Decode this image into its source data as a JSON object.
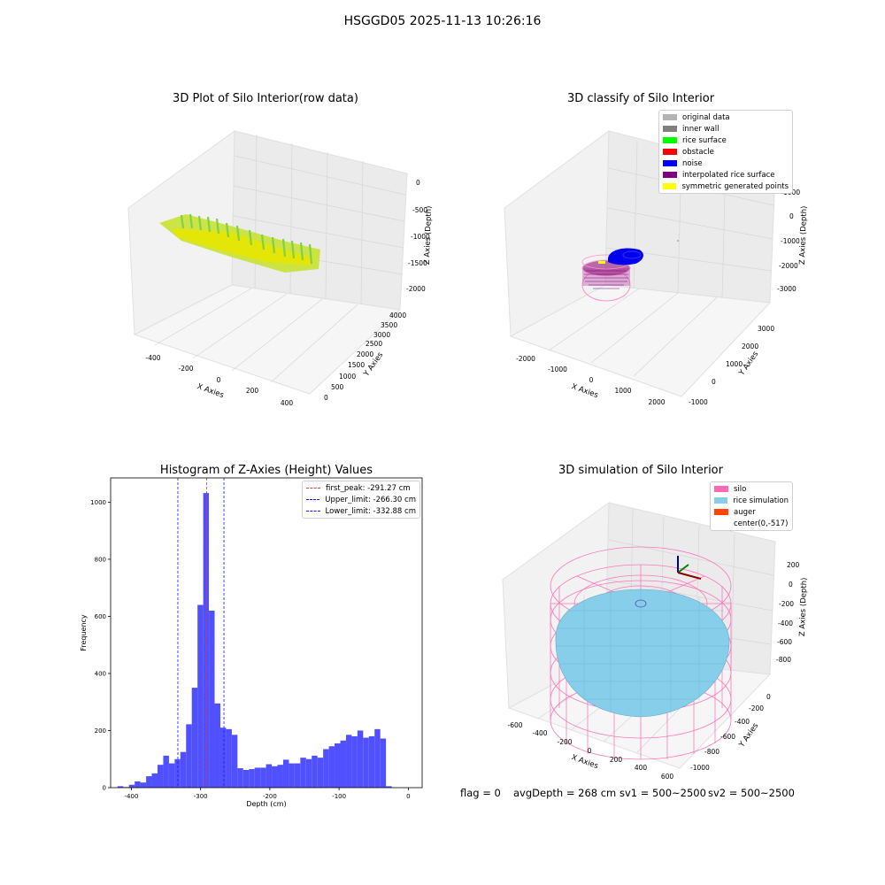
{
  "suptitle": "HSGGD05 2025-11-13 10:26:16",
  "colors": {
    "pane": "#f2f2f2",
    "grid": "#d6d6d6",
    "hist_bar": "#5050ff",
    "first_peak": "#e33a2a",
    "limit": "#1a1aff",
    "silo": "#ff69b4",
    "rice_sim": "#87ceeb",
    "auger": "#ff4500",
    "noise": "#0000ee",
    "interp_rice": "#800080",
    "symmetric": "#ffff00"
  },
  "footer": {
    "flag": "flag = 0",
    "avg": "avgDepth = 268 cm",
    "sv1": "sv1 = 500~2500",
    "sv2": "sv2 = 500~2500"
  },
  "chart_data": [
    {
      "type": "scatter3d",
      "title": "3D Plot of Silo Interior(row data)",
      "xlabel": "X Axies",
      "ylabel": "Y Axies",
      "zlabel": "Z Axies (Depth)",
      "x_ticks": [
        "-400",
        "-200",
        "0",
        "200",
        "400"
      ],
      "y_ticks": [
        "0",
        "500",
        "1000",
        "1500",
        "2000",
        "2500",
        "3000",
        "3500",
        "4000"
      ],
      "z_ticks": [
        "0",
        "-500",
        "-1000",
        "-1500",
        "-2000"
      ],
      "colormap": [
        "#7fd04a",
        "#b8e030",
        "#e6e600"
      ]
    },
    {
      "type": "scatter3d",
      "title": "3D classify of Silo Interior",
      "xlabel": "X Axies",
      "ylabel": "Y Axies",
      "zlabel": "Z Axies (Depth)",
      "x_ticks": [
        "-2000",
        "-1000",
        "0",
        "1000",
        "2000"
      ],
      "y_ticks": [
        "-1000",
        "0",
        "1000",
        "2000",
        "3000"
      ],
      "z_ticks": [
        "1000",
        "0",
        "-1000",
        "-2000",
        "-3000"
      ],
      "legend": [
        {
          "label": "original data",
          "color": "#b4b4b4"
        },
        {
          "label": "inner wall",
          "color": "#808080"
        },
        {
          "label": "rice surface",
          "color": "#00ff00"
        },
        {
          "label": "obstacle",
          "color": "#ff0000"
        },
        {
          "label": "noise",
          "color": "#0000ff"
        },
        {
          "label": "interpolated rice surface",
          "color": "#800080"
        },
        {
          "label": "symmetric generated points",
          "color": "#ffff00"
        }
      ]
    },
    {
      "type": "bar",
      "title": "Histogram of Z-Axies (Height) Values",
      "xlabel": "Depth (cm)",
      "ylabel": "Frequency",
      "xlim": [
        -430,
        20
      ],
      "ylim": [
        0,
        1085
      ],
      "x_ticks": [
        -400,
        -300,
        -200,
        -100,
        0
      ],
      "y_ticks": [
        0,
        200,
        400,
        600,
        800,
        1000
      ],
      "bin_start": -420,
      "bin_width": 8.25,
      "values": [
        5,
        2,
        10,
        22,
        18,
        40,
        50,
        80,
        112,
        85,
        100,
        125,
        222,
        350,
        640,
        1032,
        620,
        295,
        210,
        205,
        185,
        68,
        62,
        65,
        70,
        70,
        82,
        75,
        80,
        98,
        85,
        85,
        105,
        100,
        112,
        105,
        135,
        145,
        155,
        165,
        185,
        180,
        200,
        175,
        180,
        205,
        172,
        5
      ],
      "vlines": [
        {
          "x": -291.27,
          "label": "first_peak: -291.27 cm",
          "color": "#e33a2a"
        },
        {
          "x": -266.3,
          "label": "Upper_limit: -266.30 cm",
          "color": "#1a1aff"
        },
        {
          "x": -332.88,
          "label": "Lower_limit: -332.88 cm",
          "color": "#1a1aff"
        }
      ]
    },
    {
      "type": "surface3d",
      "title": "3D simulation of Silo Interior",
      "xlabel": "X Axies",
      "ylabel": "Y Axies",
      "zlabel": "Z Axies (Depth)",
      "x_ticks": [
        "-600",
        "-400",
        "-200",
        "0",
        "200",
        "400",
        "600"
      ],
      "y_ticks": [
        "-1000",
        "-800",
        "-600",
        "-400",
        "-200",
        "0"
      ],
      "z_ticks": [
        "200",
        "0",
        "-200",
        "-400",
        "-600",
        "-800"
      ],
      "legend": [
        {
          "label": "silo",
          "color": "#ff69b4"
        },
        {
          "label": "rice simulation",
          "color": "#87ceeb"
        },
        {
          "label": "auger",
          "color": "#ff4500"
        },
        {
          "label": "center(0,-517)",
          "color": ""
        }
      ]
    }
  ]
}
